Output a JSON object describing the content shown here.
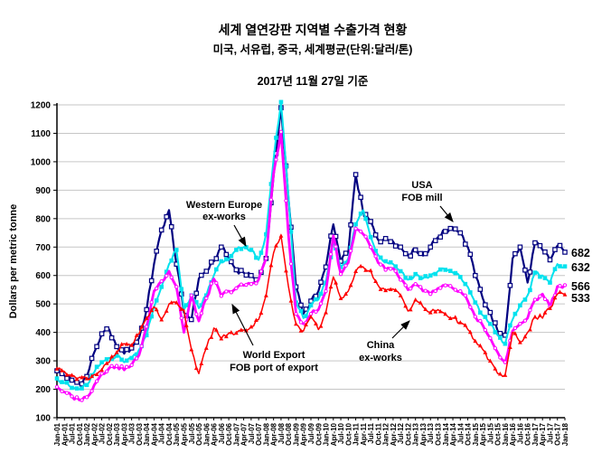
{
  "header": {
    "title": "세계 열연강판 지역별 수출가격 현황",
    "subtitle": "미국, 서유럽, 중국, 세계평균(단위:달러/톤)",
    "as_of": "2017년 11월 27일 기준"
  },
  "colors": {
    "usa": "#000080",
    "western_europe": "#00E2EE",
    "world_export": "#FF00FF",
    "china": "#FF0000",
    "grid": "#C6C6C6",
    "axis": "#000000",
    "background": "#FFFFFF"
  },
  "chart_data": {
    "type": "line",
    "title": "세계 열연강판 지역별 수출가격 현황",
    "subtitle": "미국, 서유럽, 중국, 세계평균(단위:달러/톤)",
    "as_of_label": "2017년 11월 27일 기준",
    "xlabel": "",
    "ylabel": "Dollars per metric tonne",
    "ylim": [
      100,
      1200
    ],
    "ytick_step": 100,
    "grid": "horizontal",
    "legend": "inline-annotations",
    "categories": [
      "Jan-01",
      "Apr-01",
      "Jul-01",
      "Oct-01",
      "Jan-02",
      "Apr-02",
      "Jul-02",
      "Oct-02",
      "Jan-03",
      "Apr-03",
      "Jul-03",
      "Oct-03",
      "Jan-04",
      "Apr-04",
      "Jul-04",
      "Oct-04",
      "Jan-05",
      "Apr-05",
      "Jul-05",
      "Oct-05",
      "Jan-06",
      "Apr-06",
      "Jul-06",
      "Oct-06",
      "Jan-07",
      "Apr-07",
      "Jul-07",
      "Oct-07",
      "Jan-08",
      "Apr-08",
      "Jul-08",
      "Oct-08",
      "Jan-09",
      "Apr-09",
      "Jul-09",
      "Oct-09",
      "Jan-10",
      "Apr-10",
      "Jul-10",
      "Oct-10",
      "Jan-11",
      "Apr-11",
      "Jul-11",
      "Oct-11",
      "Jan-12",
      "Apr-12",
      "Jul-12",
      "Oct-12",
      "Jan-13",
      "Apr-13",
      "Jul-13",
      "Oct-13",
      "Jan-14",
      "Apr-14",
      "Jul-14",
      "Oct-14",
      "Jan-15",
      "Apr-15",
      "Jul-15",
      "Oct-15",
      "Jan-16",
      "Apr-16",
      "Jul-16",
      "Oct-16",
      "Jan-17",
      "Apr-17",
      "Jul-17",
      "Oct-17",
      "Jan-18"
    ],
    "series": [
      {
        "name": "USA FOB mill",
        "color": "#000080",
        "marker": "open-square",
        "values": [
          265,
          248,
          232,
          220,
          245,
          330,
          395,
          410,
          350,
          325,
          345,
          380,
          480,
          640,
          760,
          830,
          640,
          470,
          445,
          590,
          615,
          650,
          700,
          660,
          620,
          610,
          600,
          590,
          660,
          950,
          1190,
          870,
          560,
          465,
          510,
          545,
          630,
          780,
          650,
          680,
          955,
          820,
          790,
          725,
          730,
          720,
          700,
          670,
          690,
          670,
          700,
          735,
          755,
          770,
          750,
          700,
          600,
          520,
          470,
          405,
          390,
          660,
          700,
          575,
          715,
          690,
          655,
          705,
          682
        ]
      },
      {
        "name": "Western Europe ex-works",
        "color": "#00E2EE",
        "marker": "filled-square",
        "values": [
          238,
          222,
          205,
          200,
          215,
          260,
          295,
          310,
          318,
          295,
          310,
          340,
          390,
          490,
          560,
          640,
          690,
          480,
          530,
          485,
          530,
          600,
          650,
          655,
          690,
          700,
          690,
          655,
          745,
          1010,
          1210,
          880,
          505,
          450,
          495,
          515,
          575,
          720,
          630,
          660,
          780,
          830,
          735,
          672,
          650,
          640,
          615,
          585,
          605,
          590,
          600,
          615,
          620,
          610,
          595,
          560,
          505,
          460,
          430,
          390,
          360,
          445,
          495,
          530,
          610,
          600,
          575,
          640,
          632
        ]
      },
      {
        "name": "World Export FOB port of export",
        "color": "#FF00FF",
        "marker": "open-circle",
        "values": [
          208,
          190,
          175,
          162,
          172,
          215,
          255,
          275,
          282,
          268,
          285,
          320,
          420,
          545,
          580,
          615,
          560,
          400,
          530,
          440,
          520,
          588,
          528,
          545,
          555,
          565,
          570,
          585,
          660,
          960,
          1105,
          740,
          465,
          430,
          465,
          480,
          545,
          740,
          605,
          645,
          765,
          745,
          700,
          645,
          620,
          625,
          585,
          550,
          570,
          545,
          535,
          555,
          565,
          555,
          545,
          510,
          455,
          425,
          380,
          330,
          295,
          405,
          430,
          450,
          515,
          535,
          490,
          562,
          566
        ]
      },
      {
        "name": "China ex-works",
        "color": "#FF0000",
        "marker": "filled-triangle",
        "values": [
          272,
          262,
          250,
          242,
          238,
          252,
          268,
          295,
          330,
          360,
          355,
          395,
          450,
          490,
          445,
          500,
          505,
          480,
          340,
          255,
          345,
          415,
          378,
          398,
          398,
          408,
          420,
          445,
          530,
          680,
          740,
          560,
          430,
          405,
          455,
          410,
          470,
          595,
          520,
          545,
          615,
          630,
          618,
          565,
          548,
          552,
          530,
          475,
          515,
          490,
          470,
          480,
          465,
          450,
          435,
          410,
          370,
          340,
          300,
          255,
          250,
          400,
          365,
          400,
          455,
          450,
          485,
          535,
          533
        ]
      }
    ],
    "end_labels": [
      "682",
      "632",
      "566",
      "533"
    ],
    "annotations": [
      {
        "lines": [
          "Western Europe",
          "ex-works"
        ],
        "series": "Western Europe ex-works"
      },
      {
        "lines": [
          "USA",
          "FOB mill"
        ],
        "series": "USA FOB mill"
      },
      {
        "lines": [
          "World Export",
          "FOB port of export"
        ],
        "series": "World Export FOB port of export"
      },
      {
        "lines": [
          "China",
          "ex-works"
        ],
        "series": "China ex-works"
      }
    ]
  }
}
